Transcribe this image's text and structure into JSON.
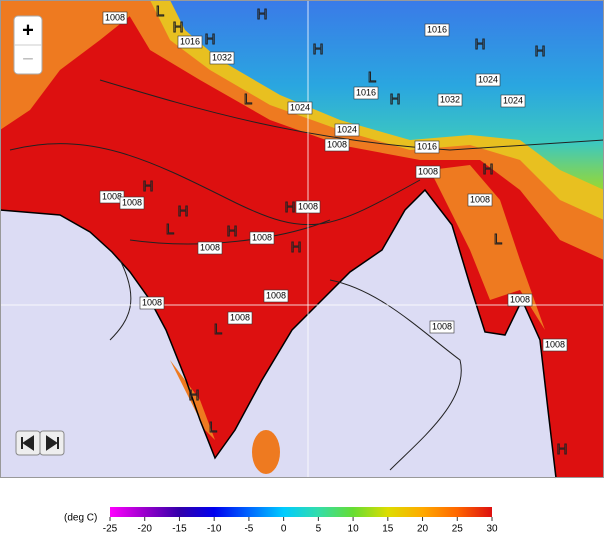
{
  "controls": {
    "zoom_in": "+",
    "zoom_out": "−"
  },
  "isobars": [
    "1008",
    "1016",
    "1032",
    "1016",
    "1024",
    "1024",
    "1032",
    "1016",
    "1024",
    "1024",
    "1008",
    "1016",
    "1008",
    "1008",
    "1008",
    "1008",
    "1008",
    "1008",
    "1008",
    "1008",
    "1008",
    "1008",
    "1008",
    "1008",
    "1008"
  ],
  "pressure_centers": [
    "H",
    "H",
    "L",
    "H",
    "H",
    "H",
    "L",
    "H",
    "H",
    "H",
    "L",
    "H",
    "H",
    "L",
    "H",
    "L",
    "H",
    "H",
    "L",
    "H",
    "L",
    "H"
  ],
  "colorbar": {
    "unit": "(deg C)",
    "ticks": [
      -25,
      -20,
      -15,
      -10,
      -5,
      0,
      5,
      10,
      15,
      20,
      25,
      30
    ],
    "colors": [
      "#ff00ff",
      "#9900cc",
      "#3300aa",
      "#0000ee",
      "#0066ff",
      "#00ccff",
      "#33ddaa",
      "#66dd33",
      "#dddd00",
      "#ffaa00",
      "#ff6600",
      "#dd1010"
    ]
  }
}
